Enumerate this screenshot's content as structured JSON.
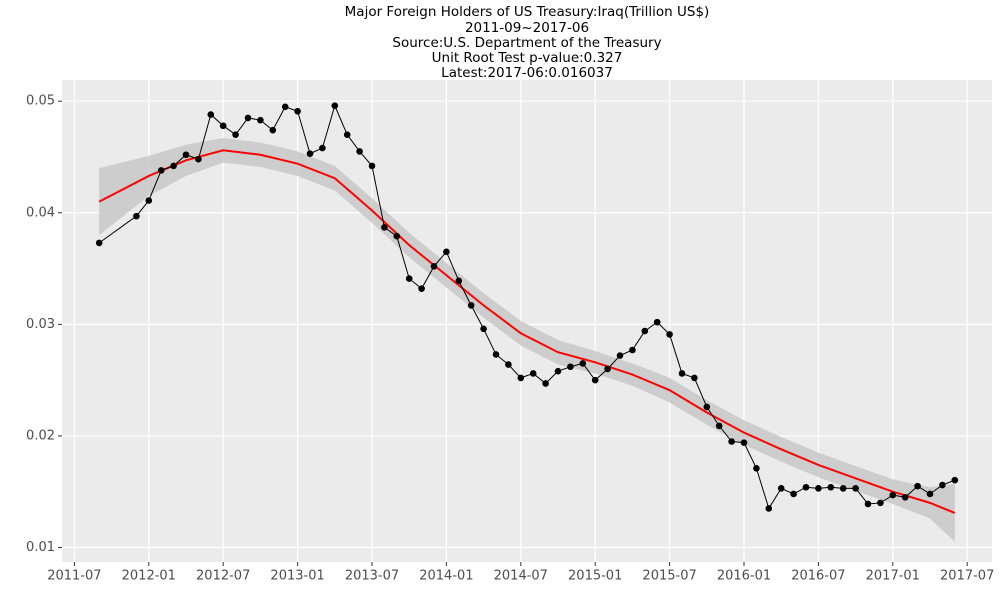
{
  "chart_data": {
    "type": "line",
    "title": "Major Foreign Holders of US Treasury:Iraq(Trillion US$)",
    "subtitles": [
      "2011-09~2017-06",
      "Source:U.S. Department of the Treasury",
      "Unit Root Test p-value:0.327",
      "Latest:2017-06:0.016037"
    ],
    "x": [
      "2011-09",
      "2011-12",
      "2012-01",
      "2012-02",
      "2012-03",
      "2012-04",
      "2012-05",
      "2012-06",
      "2012-07",
      "2012-08",
      "2012-09",
      "2012-10",
      "2012-11",
      "2012-12",
      "2013-01",
      "2013-02",
      "2013-03",
      "2013-04",
      "2013-05",
      "2013-06",
      "2013-07",
      "2013-08",
      "2013-09",
      "2013-10",
      "2013-11",
      "2013-12",
      "2014-01",
      "2014-02",
      "2014-03",
      "2014-04",
      "2014-05",
      "2014-06",
      "2014-07",
      "2014-08",
      "2014-09",
      "2014-10",
      "2014-11",
      "2014-12",
      "2015-01",
      "2015-02",
      "2015-03",
      "2015-04",
      "2015-05",
      "2015-06",
      "2015-07",
      "2015-08",
      "2015-09",
      "2015-10",
      "2015-11",
      "2015-12",
      "2016-01",
      "2016-02",
      "2016-03",
      "2016-04",
      "2016-05",
      "2016-06",
      "2016-07",
      "2016-08",
      "2016-09",
      "2016-10",
      "2016-11",
      "2016-12",
      "2017-01",
      "2017-02",
      "2017-03",
      "2017-04",
      "2017-05",
      "2017-06"
    ],
    "series": [
      {
        "color": "#000000",
        "values": [
          0.0373,
          0.0397,
          0.0411,
          0.0438,
          0.0442,
          0.0452,
          0.0448,
          0.0488,
          0.0478,
          0.047,
          0.0485,
          0.0483,
          0.0474,
          0.0495,
          0.0491,
          0.0453,
          0.0458,
          0.0496,
          0.047,
          0.0455,
          0.0442,
          0.0387,
          0.0379,
          0.0341,
          0.0332,
          0.0352,
          0.0365,
          0.0339,
          0.0317,
          0.0296,
          0.0273,
          0.0264,
          0.0252,
          0.0256,
          0.0247,
          0.0258,
          0.0262,
          0.0265,
          0.025,
          0.026,
          0.0272,
          0.0277,
          0.0294,
          0.0302,
          0.0291,
          0.0256,
          0.0252,
          0.0226,
          0.0209,
          0.0195,
          0.0194,
          0.0171,
          0.0135,
          0.0153,
          0.0148,
          0.0154,
          0.0153,
          0.0154,
          0.0153,
          0.0153,
          0.0139,
          0.014,
          0.0147,
          0.0145,
          0.0155,
          0.0148,
          0.0156,
          0.016037
        ]
      }
    ],
    "smooth": {
      "color": "#ff0000",
      "band_color": "#c8c8c8",
      "x": [
        "2011-09",
        "2012-01",
        "2012-04",
        "2012-07",
        "2012-10",
        "2013-01",
        "2013-04",
        "2013-07",
        "2013-10",
        "2014-01",
        "2014-04",
        "2014-07",
        "2014-10",
        "2015-01",
        "2015-04",
        "2015-07",
        "2015-10",
        "2016-01",
        "2016-04",
        "2016-07",
        "2016-10",
        "2017-01",
        "2017-04",
        "2017-06"
      ],
      "values": [
        0.041,
        0.0433,
        0.0447,
        0.0456,
        0.0452,
        0.0444,
        0.0431,
        0.0402,
        0.0371,
        0.0344,
        0.0317,
        0.0292,
        0.0275,
        0.0266,
        0.0255,
        0.0241,
        0.0221,
        0.0203,
        0.0188,
        0.0174,
        0.0162,
        0.015,
        0.014,
        0.0131
      ],
      "upper": [
        0.044,
        0.0451,
        0.0461,
        0.0467,
        0.0463,
        0.0455,
        0.0442,
        0.0413,
        0.0382,
        0.0355,
        0.0328,
        0.0303,
        0.0286,
        0.0276,
        0.0265,
        0.0252,
        0.0232,
        0.0214,
        0.0199,
        0.0185,
        0.0173,
        0.0161,
        0.0154,
        0.0157
      ],
      "lower": [
        0.038,
        0.0415,
        0.0433,
        0.0445,
        0.0441,
        0.0433,
        0.042,
        0.0391,
        0.036,
        0.0333,
        0.0306,
        0.0281,
        0.0264,
        0.0256,
        0.0245,
        0.023,
        0.021,
        0.0192,
        0.0177,
        0.0163,
        0.0151,
        0.0139,
        0.0126,
        0.0105
      ]
    },
    "xlim": [
      "2011-06",
      "2017-09"
    ],
    "xticks": [
      "2011-07",
      "2012-01",
      "2012-07",
      "2013-01",
      "2013-07",
      "2014-01",
      "2014-07",
      "2015-01",
      "2015-07",
      "2016-01",
      "2016-07",
      "2017-01",
      "2017-07"
    ],
    "ylim": [
      0.0087,
      0.0519
    ],
    "yticks": [
      0.01,
      0.02,
      0.03,
      0.04,
      0.05
    ],
    "grid": true
  }
}
